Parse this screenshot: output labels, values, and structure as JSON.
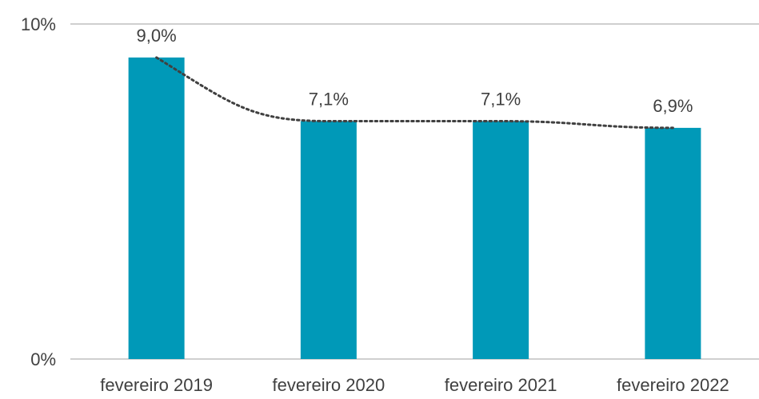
{
  "chart_data": {
    "type": "bar",
    "categories": [
      "fevereiro  2019",
      "fevereiro  2020",
      "fevereiro  2021",
      "fevereiro  2022"
    ],
    "values": [
      9.0,
      7.1,
      7.1,
      6.9
    ],
    "data_labels": [
      "9,0%",
      "7,1%",
      "7,1%",
      "6,9%"
    ],
    "ylim": [
      0,
      10
    ],
    "y_ticks": [
      {
        "value": 0,
        "label": "0%"
      },
      {
        "value": 10,
        "label": "10%"
      }
    ],
    "title": "",
    "xlabel": "",
    "ylabel": "",
    "grid": false,
    "legend": "none",
    "trendline": {
      "style": "dotted",
      "color": "#404040"
    },
    "colors": {
      "bar": "#0099b8",
      "axis": "#bfbfbf",
      "text": "#404040"
    }
  }
}
